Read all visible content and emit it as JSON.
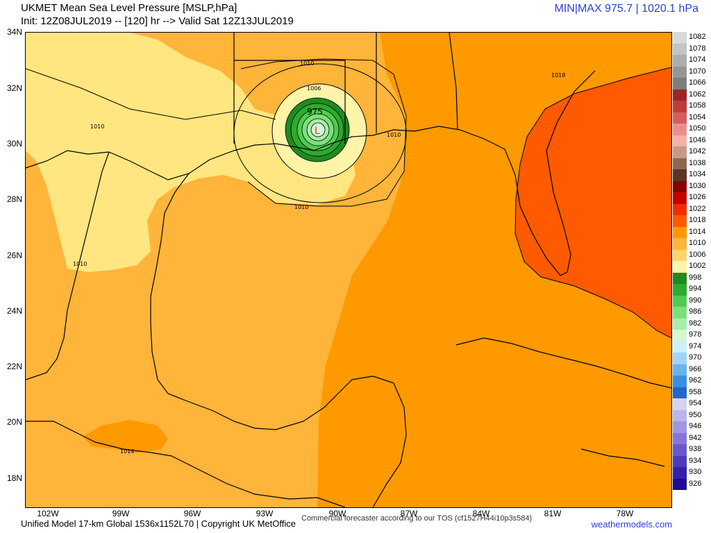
{
  "header": {
    "title": "UKMET Mean Sea Level Pressure [MSLP,hPa]",
    "init": "Init: 12Z08JUL2019 -- [120] hr --> Valid Sat 12Z13JUL2019",
    "minmax": "MIN|MAX 975.7 | 1020.1 hPa"
  },
  "axes": {
    "lat_labels": [
      "34N",
      "32N",
      "30N",
      "28N",
      "26N",
      "24N",
      "22N",
      "20N",
      "18N"
    ],
    "lon_labels": [
      "102W",
      "99W",
      "96W",
      "93W",
      "90W",
      "87W",
      "84W",
      "81W",
      "78W"
    ]
  },
  "map": {
    "low_center_label": "L",
    "contour_labels": [
      "975",
      "1006",
      "1010",
      "1010",
      "1010",
      "1010",
      "1010",
      "1014",
      "1018"
    ]
  },
  "legend": {
    "levels": [
      {
        "value": "1082",
        "color": "#d9d9d9"
      },
      {
        "value": "1078",
        "color": "#c4c4c4"
      },
      {
        "value": "1074",
        "color": "#adadad"
      },
      {
        "value": "1070",
        "color": "#959595"
      },
      {
        "value": "1066",
        "color": "#7d7d7d"
      },
      {
        "value": "1062",
        "color": "#9a2626"
      },
      {
        "value": "1058",
        "color": "#c03a3a"
      },
      {
        "value": "1054",
        "color": "#d85d5d"
      },
      {
        "value": "1050",
        "color": "#ec8d8d"
      },
      {
        "value": "1046",
        "color": "#f2b2a8"
      },
      {
        "value": "1042",
        "color": "#c69a85"
      },
      {
        "value": "1038",
        "color": "#8f6650"
      },
      {
        "value": "1034",
        "color": "#5b3525"
      },
      {
        "value": "1030",
        "color": "#8b0000"
      },
      {
        "value": "1026",
        "color": "#c40000"
      },
      {
        "value": "1022",
        "color": "#f22a00"
      },
      {
        "value": "1018",
        "color": "#ff5a00"
      },
      {
        "value": "1014",
        "color": "#ff9900"
      },
      {
        "value": "1010",
        "color": "#ffb43a"
      },
      {
        "value": "1006",
        "color": "#ffd56b"
      },
      {
        "value": "1002",
        "color": "#fff4a8"
      },
      {
        "value": "998",
        "color": "#1f8a1f"
      },
      {
        "value": "994",
        "color": "#2eaa2e"
      },
      {
        "value": "990",
        "color": "#4fcc4f"
      },
      {
        "value": "986",
        "color": "#7be07b"
      },
      {
        "value": "982",
        "color": "#a9eea9"
      },
      {
        "value": "978",
        "color": "#d4f7d4"
      },
      {
        "value": "974",
        "color": "#cdeeff"
      },
      {
        "value": "970",
        "color": "#9fd4f7"
      },
      {
        "value": "966",
        "color": "#6ab4ee"
      },
      {
        "value": "962",
        "color": "#3b8fe0"
      },
      {
        "value": "958",
        "color": "#1f68c9"
      },
      {
        "value": "954",
        "color": "#d7d2f0"
      },
      {
        "value": "950",
        "color": "#bdb4ea"
      },
      {
        "value": "946",
        "color": "#a296e2"
      },
      {
        "value": "942",
        "color": "#8676d8"
      },
      {
        "value": "938",
        "color": "#6a57cc"
      },
      {
        "value": "934",
        "color": "#4f3abd"
      },
      {
        "value": "930",
        "color": "#3520ab"
      },
      {
        "value": "926",
        "color": "#1d0b95"
      }
    ]
  },
  "footer": {
    "model": "Unified Model 17-km Global 1536x1152L70 | Copyright UK MetOffice",
    "tos": "Commercial forecaster according to our TOS (cf1527H44i10p3s584)",
    "site": "weathermodels.com"
  }
}
